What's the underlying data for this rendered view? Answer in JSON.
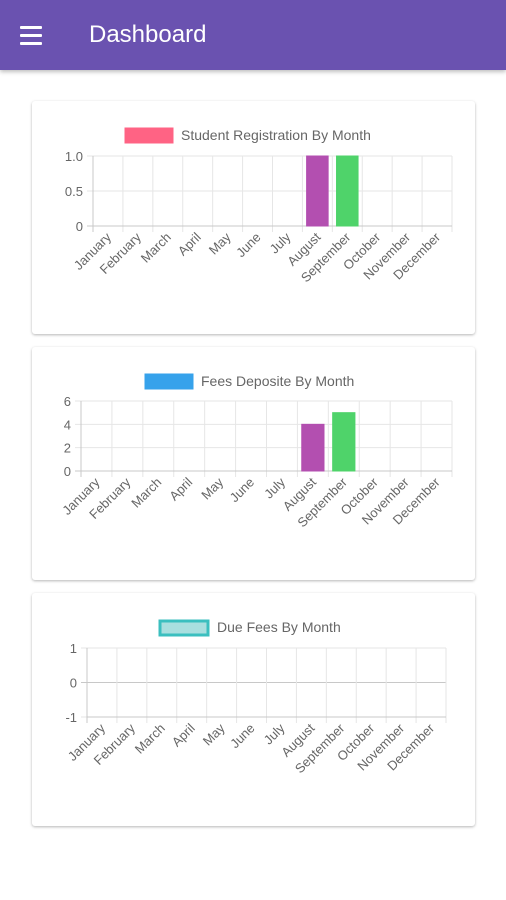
{
  "app": {
    "title": "Dashboard"
  },
  "icons": {
    "menu": "hamburger-menu-icon"
  },
  "colors": {
    "appbar": "#6a52b0",
    "august_bar": "#b34fb0",
    "september_bar": "#4fd36a",
    "registration_legend": "#ff6384",
    "fees_legend": "#36a2eb",
    "due_legend_fill": "#a9dfdf",
    "due_legend_border": "#3bbfbf"
  },
  "chart_data": [
    {
      "type": "bar",
      "title": "Student Registration By Month",
      "legend": "Student Registration By Month",
      "categories": [
        "January",
        "February",
        "March",
        "April",
        "May",
        "June",
        "July",
        "August",
        "September",
        "October",
        "November",
        "December"
      ],
      "values": [
        0,
        0,
        0,
        0,
        0,
        0,
        0,
        1,
        1,
        0,
        0,
        0
      ],
      "ylim": [
        0,
        1
      ],
      "yticks": [
        "1.0",
        "0.5",
        "0"
      ],
      "grid": true,
      "legend_position": "top"
    },
    {
      "type": "bar",
      "title": "Fees Deposite By Month",
      "legend": "Fees Deposite By Month",
      "categories": [
        "January",
        "February",
        "March",
        "April",
        "May",
        "June",
        "July",
        "August",
        "September",
        "October",
        "November",
        "December"
      ],
      "values": [
        0,
        0,
        0,
        0,
        0,
        0,
        0,
        4,
        5,
        0,
        0,
        0
      ],
      "ylim": [
        0,
        6
      ],
      "yticks": [
        "6",
        "4",
        "2",
        "0"
      ],
      "grid": true,
      "legend_position": "top"
    },
    {
      "type": "bar",
      "title": "Due Fees By Month",
      "legend": "Due Fees By Month",
      "categories": [
        "January",
        "February",
        "March",
        "April",
        "May",
        "June",
        "July",
        "August",
        "September",
        "October",
        "November",
        "December"
      ],
      "values": [
        0,
        0,
        0,
        0,
        0,
        0,
        0,
        0,
        0,
        0,
        0,
        0
      ],
      "ylim": [
        -1,
        1
      ],
      "yticks": [
        "1",
        "0",
        "-1"
      ],
      "grid": true,
      "legend_position": "top"
    }
  ]
}
